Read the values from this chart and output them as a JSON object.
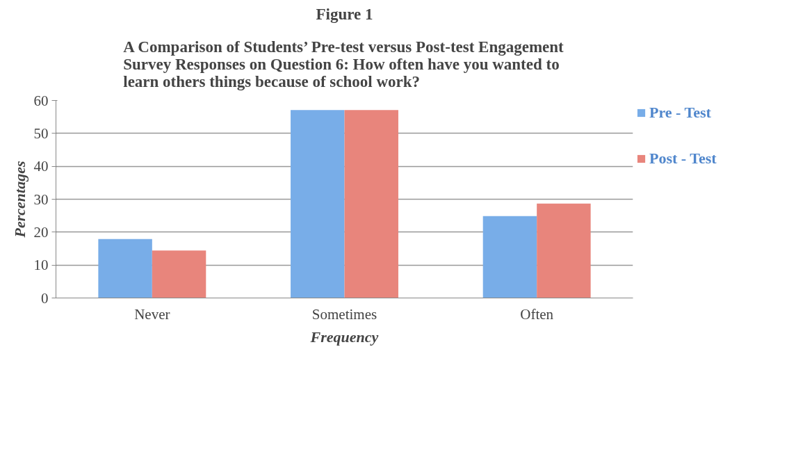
{
  "chart_data": {
    "type": "bar",
    "title": "Figure 1",
    "subtitle": "A Comparison of Students’ Pre-test versus Post-test Engagement Survey Responses on Question 6: How often have you wanted to learn others things because of school work?",
    "xlabel": "Frequency",
    "ylabel": "Percentages",
    "categories": [
      "Never",
      "Sometimes",
      "Often"
    ],
    "series": [
      {
        "name": "Pre - Test",
        "color": "#78ade8",
        "values": [
          17.9,
          57.1,
          24.9
        ]
      },
      {
        "name": "Post - Test",
        "color": "#e8857c",
        "values": [
          14.4,
          57.1,
          28.7
        ]
      }
    ],
    "ylim": [
      0,
      60
    ],
    "yticks": [
      0,
      10,
      20,
      30,
      40,
      50,
      60
    ],
    "grid": "y",
    "legend": "right"
  }
}
